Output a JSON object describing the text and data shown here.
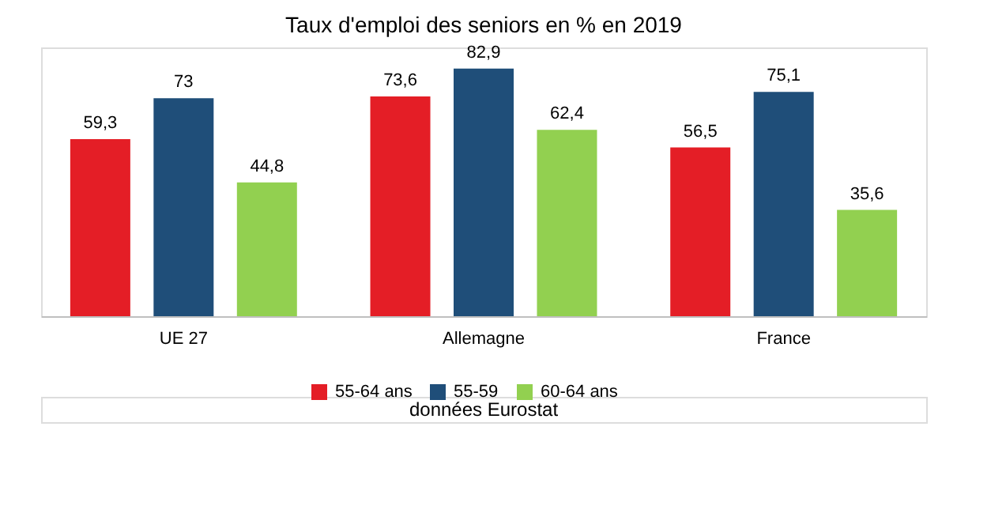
{
  "chart_data": {
    "type": "bar",
    "title": "Taux d'emploi des seniors en % en 2019",
    "categories": [
      "UE 27",
      "Allemagne",
      "France"
    ],
    "series": [
      {
        "name": "55-64 ans",
        "color": "#e41e26",
        "values": [
          59.3,
          73.6,
          56.5
        ],
        "value_labels": [
          "59,3",
          "73,6",
          "56,5"
        ]
      },
      {
        "name": "55-59",
        "color": "#1f4e79",
        "values": [
          73,
          82.9,
          75.1
        ],
        "value_labels": [
          "73",
          "82,9",
          "75,1"
        ]
      },
      {
        "name": "60-64 ans",
        "color": "#92d050",
        "values": [
          44.8,
          62.4,
          35.6
        ],
        "value_labels": [
          "44,8",
          "62,4",
          "35,6"
        ]
      }
    ],
    "legend": "bottom",
    "grid": false,
    "annotations": [
      "données Eurostat"
    ]
  }
}
